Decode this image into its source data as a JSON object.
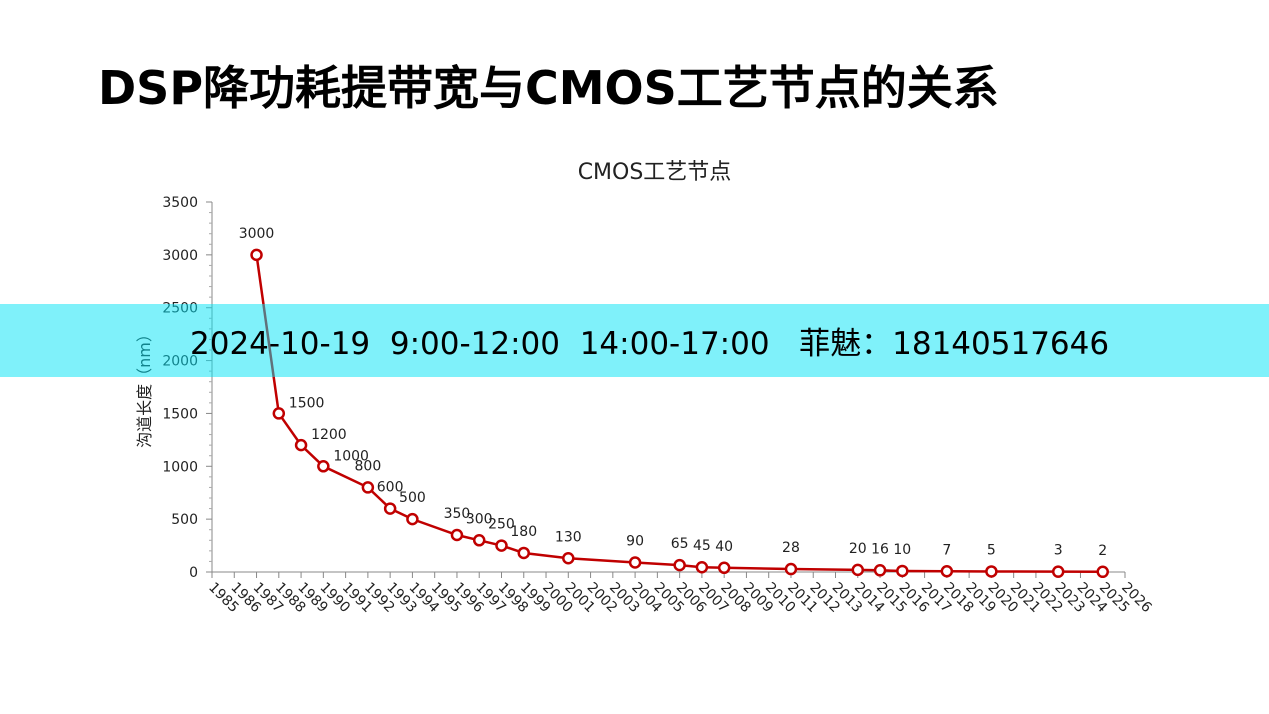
{
  "slide": {
    "title": "DSP降功耗提带宽与CMOS工艺节点的关系"
  },
  "banner": {
    "text": "2024-10-19  9:00-12:00  14:00-17:00   菲魅：18140517646",
    "color": "#00e4f5"
  },
  "chart_data": {
    "type": "line",
    "title": "CMOS工艺节点",
    "ylabel": "沟道长度（nm）",
    "xlabel": "",
    "xlim": [
      1985,
      2026
    ],
    "ylim": [
      0,
      3500
    ],
    "yticks": [
      0,
      500,
      1000,
      1500,
      2000,
      2500,
      3000,
      3500
    ],
    "xticks": [
      1985,
      1986,
      1987,
      1988,
      1989,
      1990,
      1991,
      1992,
      1993,
      1994,
      1995,
      1996,
      1997,
      1998,
      1999,
      2000,
      2001,
      2002,
      2003,
      2004,
      2005,
      2006,
      2007,
      2008,
      2009,
      2010,
      2011,
      2012,
      2013,
      2014,
      2015,
      2016,
      2017,
      2018,
      2019,
      2020,
      2021,
      2022,
      2023,
      2024,
      2025,
      2026
    ],
    "grid": false,
    "line_color": "#c00000",
    "series": [
      {
        "points": [
          {
            "x": 1987,
            "y": 3000
          },
          {
            "x": 1988,
            "y": 1500
          },
          {
            "x": 1989,
            "y": 1200
          },
          {
            "x": 1990,
            "y": 1000
          },
          {
            "x": 1992,
            "y": 800
          },
          {
            "x": 1993,
            "y": 600
          },
          {
            "x": 1994,
            "y": 500
          },
          {
            "x": 1996,
            "y": 350
          },
          {
            "x": 1997,
            "y": 300
          },
          {
            "x": 1998,
            "y": 250
          },
          {
            "x": 1999,
            "y": 180
          },
          {
            "x": 2001,
            "y": 130
          },
          {
            "x": 2004,
            "y": 90
          },
          {
            "x": 2006,
            "y": 65
          },
          {
            "x": 2007,
            "y": 45
          },
          {
            "x": 2008,
            "y": 40
          },
          {
            "x": 2011,
            "y": 28
          },
          {
            "x": 2014,
            "y": 20
          },
          {
            "x": 2015,
            "y": 16
          },
          {
            "x": 2016,
            "y": 10
          },
          {
            "x": 2018,
            "y": 7
          },
          {
            "x": 2020,
            "y": 5
          },
          {
            "x": 2023,
            "y": 3
          },
          {
            "x": 2025,
            "y": 2
          }
        ]
      }
    ]
  }
}
